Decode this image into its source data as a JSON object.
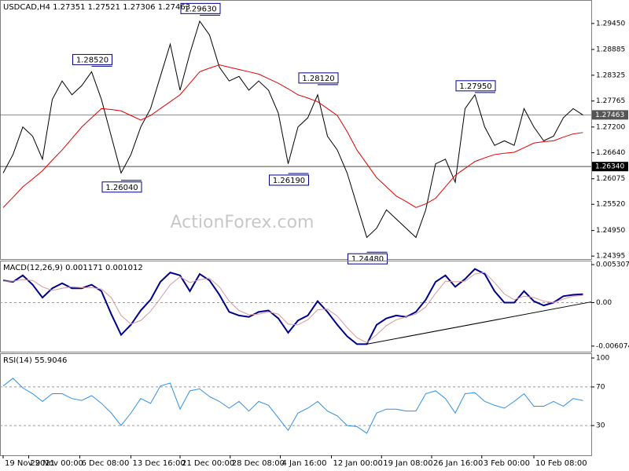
{
  "chart_data": [
    {
      "type": "line",
      "title": "USDCAD,H4  1.27351 1.27521 1.27306 1.27463",
      "watermark": "ActionForex.com",
      "x": [
        0,
        1,
        2,
        3,
        4,
        5,
        6,
        7,
        8,
        9,
        10,
        11,
        12,
        13,
        14,
        15,
        16,
        17,
        18,
        19,
        20,
        21,
        22,
        23,
        24,
        25,
        26,
        27,
        28,
        29,
        30,
        31,
        32,
        33,
        34,
        35,
        36,
        37,
        38,
        39,
        40,
        41,
        42,
        43,
        44,
        45,
        46,
        47,
        48,
        49,
        50,
        51,
        52,
        53,
        54,
        55,
        56,
        57,
        58,
        59
      ],
      "xlim": [
        -0.32,
        59.84
      ],
      "ylim": [
        1.2433,
        1.2996
      ],
      "yticks": [
        {
          "value": 1.2945,
          "label": "1.29450"
        },
        {
          "value": 1.28885,
          "label": "1.28885"
        },
        {
          "value": 1.28325,
          "label": "1.28325"
        },
        {
          "value": 1.27765,
          "label": "1.27765"
        },
        {
          "value": 1.272,
          "label": "1.27200"
        },
        {
          "value": 1.2664,
          "label": "1.26640"
        },
        {
          "value": 1.26075,
          "label": "1.26075"
        },
        {
          "value": 1.2552,
          "label": "1.25520"
        },
        {
          "value": 1.2495,
          "label": "1.24950"
        },
        {
          "value": 1.24395,
          "label": "1.24395"
        }
      ],
      "series": [
        {
          "color": "#000000",
          "values": [
            1.262,
            1.266,
            1.272,
            1.27,
            1.265,
            1.278,
            1.282,
            1.279,
            1.281,
            1.284,
            1.278,
            1.27,
            1.262,
            1.266,
            1.272,
            1.276,
            1.283,
            1.29,
            1.28,
            1.288,
            1.295,
            1.292,
            1.285,
            1.282,
            1.283,
            1.28,
            1.282,
            1.28,
            1.275,
            1.264,
            1.272,
            1.274,
            1.279,
            1.27,
            1.267,
            1.262,
            1.255,
            1.248,
            1.25,
            1.254,
            1.252,
            1.25,
            1.248,
            1.254,
            1.264,
            1.265,
            1.26,
            1.276,
            1.279,
            1.272,
            1.268,
            1.269,
            1.268,
            1.276,
            1.272,
            1.269,
            1.27,
            1.274,
            1.276,
            1.2746
          ]
        },
        {
          "color": "#e00000",
          "values": [
            1.2545,
            1.2567,
            1.259,
            1.2607,
            1.2625,
            1.2648,
            1.267,
            1.2695,
            1.272,
            1.274,
            1.276,
            1.2758,
            1.2755,
            1.2745,
            1.2735,
            1.2745,
            1.276,
            1.2775,
            1.279,
            1.2815,
            1.284,
            1.2848,
            1.2855,
            1.285,
            1.2845,
            1.284,
            1.2835,
            1.2825,
            1.2815,
            1.2803,
            1.279,
            1.2783,
            1.2775,
            1.276,
            1.2745,
            1.271,
            1.267,
            1.264,
            1.261,
            1.259,
            1.257,
            1.2558,
            1.2545,
            1.2553,
            1.2565,
            1.259,
            1.2615,
            1.263,
            1.2645,
            1.2653,
            1.266,
            1.2663,
            1.2665,
            1.2675,
            1.2685,
            1.2688,
            1.269,
            1.2698,
            1.2705,
            1.2708
          ]
        }
      ],
      "hlines": [
        {
          "value": 1.27463,
          "label": "1.27463",
          "color": "#555555"
        },
        {
          "value": 1.2634,
          "label": "1.26340",
          "color": "#000000"
        }
      ],
      "annotations": [
        {
          "label": "1.28520",
          "x": 9,
          "y": 1.2852
        },
        {
          "label": "1.26040",
          "x": 12,
          "y": 1.2604
        },
        {
          "label": "1.29630",
          "x": 20,
          "y": 1.2963
        },
        {
          "label": "1.26190",
          "x": 29,
          "y": 1.2619
        },
        {
          "label": "1.28120",
          "x": 32,
          "y": 1.2812
        },
        {
          "label": "1.24480",
          "x": 37,
          "y": 1.2448
        },
        {
          "label": "1.27950",
          "x": 48,
          "y": 1.2795
        }
      ]
    },
    {
      "type": "line",
      "title": "MACD(12,26,9) 0.001171 0.001012",
      "x": [
        0,
        1,
        2,
        3,
        4,
        5,
        6,
        7,
        8,
        9,
        10,
        11,
        12,
        13,
        14,
        15,
        16,
        17,
        18,
        19,
        20,
        21,
        22,
        23,
        24,
        25,
        26,
        27,
        28,
        29,
        30,
        31,
        32,
        33,
        34,
        35,
        36,
        37,
        38,
        39,
        40,
        41,
        42,
        43,
        44,
        45,
        46,
        47,
        48,
        49,
        50,
        51,
        52,
        53,
        54,
        55,
        56,
        57,
        58,
        59
      ],
      "xlim": [
        -0.32,
        59.84
      ],
      "ylim": [
        -0.006855,
        0.005865
      ],
      "yticks": [
        0.005307,
        {
          "value": 0,
          "label": "0.00"
        },
        -0.006074
      ],
      "levels": [
        0
      ],
      "series": [
        {
          "color": "#00008b",
          "values": [
            0.0031,
            0.0029,
            0.0038,
            0.0025,
            0.0007,
            0.002,
            0.0027,
            0.002,
            0.002,
            0.0025,
            0.0016,
            -0.0016,
            -0.0045,
            -0.0031,
            -0.0011,
            0.0004,
            0.0029,
            0.0042,
            0.0038,
            0.0016,
            0.004,
            0.0031,
            0.0011,
            -0.0013,
            -0.0018,
            -0.002,
            -0.0013,
            -0.0011,
            -0.0022,
            -0.0042,
            -0.0025,
            -0.0018,
            0.0002,
            -0.0013,
            -0.0031,
            -0.0047,
            -0.0058,
            -0.0058,
            -0.0031,
            -0.0022,
            -0.0018,
            -0.002,
            -0.0013,
            0.0004,
            0.0029,
            0.0038,
            0.0022,
            0.0033,
            0.0047,
            0.004,
            0.0016,
            0.0,
            0.0,
            0.0016,
            0.0002,
            -0.0004,
            0.0,
            0.0009,
            0.0011,
            0.001171
          ]
        },
        {
          "color": "#d49a9a",
          "values": [
            0.003,
            0.003,
            0.0032,
            0.0031,
            0.0022,
            0.0017,
            0.002,
            0.0022,
            0.0021,
            0.0021,
            0.0019,
            0.0007,
            -0.0018,
            -0.003,
            -0.0025,
            -0.0012,
            0.0006,
            0.0025,
            0.0036,
            0.0028,
            0.0032,
            0.0034,
            0.0022,
            0.0002,
            -0.0011,
            -0.0017,
            -0.0016,
            -0.0013,
            -0.0016,
            -0.003,
            -0.0031,
            -0.0024,
            -0.001,
            -0.0009,
            -0.0019,
            -0.0035,
            -0.0049,
            -0.0056,
            -0.0045,
            -0.0032,
            -0.0024,
            -0.002,
            -0.0016,
            -0.0006,
            0.0013,
            0.003,
            0.0029,
            0.003,
            0.004,
            0.0042,
            0.0028,
            0.0012,
            0.0004,
            0.0009,
            0.0007,
            0.0002,
            0.0,
            0.0005,
            0.0009,
            0.001012
          ]
        }
      ],
      "trendline": {
        "x": [
          37,
          59.84
        ],
        "values": [
          -0.0058,
          0.0001
        ]
      }
    },
    {
      "type": "line",
      "title": "RSI(14) 55.9046",
      "x": [
        0,
        1,
        2,
        3,
        4,
        5,
        6,
        7,
        8,
        9,
        10,
        11,
        12,
        13,
        14,
        15,
        16,
        17,
        18,
        19,
        20,
        21,
        22,
        23,
        24,
        25,
        26,
        27,
        28,
        29,
        30,
        31,
        32,
        33,
        34,
        35,
        36,
        37,
        38,
        39,
        40,
        41,
        42,
        43,
        44,
        45,
        46,
        47,
        48,
        49,
        50,
        51,
        52,
        53,
        54,
        55,
        56,
        57,
        58,
        59
      ],
      "xlim": [
        -0.32,
        59.84
      ],
      "ylim": [
        -0.8,
        104.9
      ],
      "yticks": [
        100,
        70,
        30
      ],
      "levels": [
        70,
        30
      ],
      "series": [
        {
          "color": "#2f8fe8",
          "values": [
            71,
            79,
            69,
            63,
            55,
            63,
            63,
            58,
            56,
            61,
            53,
            43,
            30,
            43,
            58,
            53,
            71,
            74,
            47,
            66,
            68,
            60,
            55,
            48,
            55,
            45,
            55,
            51,
            38,
            25,
            43,
            48,
            55,
            45,
            40,
            30,
            29,
            22,
            43,
            47,
            47,
            45,
            45,
            63,
            66,
            58,
            43,
            63,
            64,
            55,
            51,
            48,
            55,
            63,
            50,
            50,
            55,
            50,
            58,
            55.9046
          ]
        }
      ],
      "xticks": [
        {
          "value": 0,
          "label": "19 Nov 2021"
        },
        {
          "value": 2.6,
          "label": "29 Nov 00:00"
        },
        {
          "value": 7.8,
          "label": "6 Dec 08:00"
        },
        {
          "value": 13,
          "label": "13 Dec 16:00"
        },
        {
          "value": 18,
          "label": "21 Dec 00:00"
        },
        {
          "value": 23.1,
          "label": "28 Dec 08:00"
        },
        {
          "value": 28.2,
          "label": "4 Jan 16:00"
        },
        {
          "value": 33.4,
          "label": "12 Jan 00:00"
        },
        {
          "value": 38.5,
          "label": "19 Jan 08:00"
        },
        {
          "value": 43.6,
          "label": "26 Jan 16:00"
        },
        {
          "value": 48.7,
          "label": "3 Feb 00:00"
        },
        {
          "value": 54,
          "label": "10 Feb 08:00"
        }
      ]
    }
  ]
}
